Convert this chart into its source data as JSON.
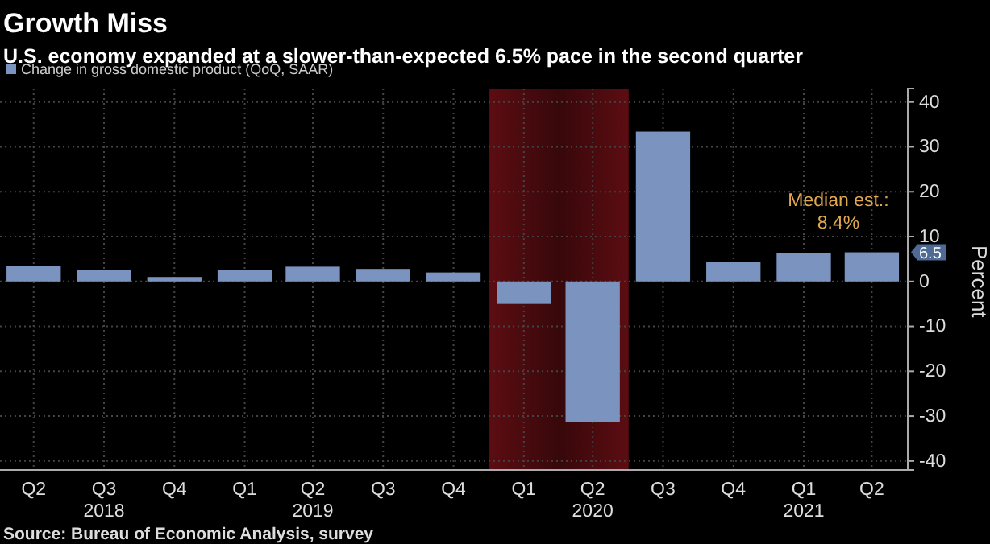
{
  "chart_data": {
    "type": "bar",
    "title": "Growth Miss",
    "subtitle": "U.S. economy expanded at a slower-than-expected 6.5% pace in the second quarter",
    "x": [
      "2018-05-15",
      "2018-08-15",
      "2018-11-15",
      "2019-02-15",
      "2019-05-15",
      "2019-08-15",
      "2019-11-15",
      "2020-02-15",
      "2020-05-15",
      "2020-08-15",
      "2020-11-15",
      "2021-02-15",
      "2021-05-15"
    ],
    "series": [
      {
        "name": "Change in gross domestic product (QoQ, SAAR)",
        "color": "#7b93bf",
        "values": [
          3.5,
          2.5,
          1,
          2.5,
          3.3,
          2.8,
          2,
          -5,
          -31.4,
          33.4,
          4.3,
          6.3,
          6.5
        ]
      }
    ],
    "xlim": [
      "2018-04-01",
      "2021-07-01"
    ],
    "xticks": [
      {
        "value": "2018-05-15",
        "label": "Q2"
      },
      {
        "value": "2018-08-15",
        "label": "Q3\n2018"
      },
      {
        "value": "2018-11-15",
        "label": "Q4"
      },
      {
        "value": "2019-02-15",
        "label": "Q1"
      },
      {
        "value": "2019-05-15",
        "label": "Q2\n2019"
      },
      {
        "value": "2019-08-15",
        "label": "Q3"
      },
      {
        "value": "2019-11-15",
        "label": "Q4"
      },
      {
        "value": "2020-02-15",
        "label": "Q1"
      },
      {
        "value": "2020-05-15",
        "label": "Q2\n2020"
      },
      {
        "value": "2020-08-15",
        "label": "Q3"
      },
      {
        "value": "2020-11-15",
        "label": "Q4"
      },
      {
        "value": "2021-02-15",
        "label": "Q1\n2021"
      },
      {
        "value": "2021-05-15",
        "label": "Q2"
      }
    ],
    "ylim": [
      -42,
      43
    ],
    "yticks": [
      -40,
      -30,
      -20,
      -10,
      0,
      10,
      20,
      30,
      40
    ],
    "ylabel": "Percent",
    "grid": true,
    "legend": "top left",
    "bands": [
      {
        "axis": "x",
        "from": "2020-01-01",
        "to": "2020-07-01",
        "color": "#5c0d12"
      }
    ],
    "annotations": [
      "Median est.:\n8.4%",
      {
        "text": "6.5",
        "x": "2021-05-15",
        "y": 6.5
      },
      "Source: Bureau of Economic Analysis, survey"
    ]
  }
}
